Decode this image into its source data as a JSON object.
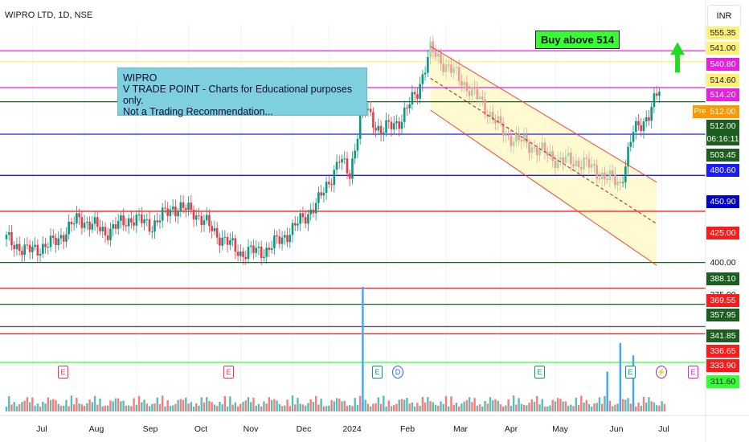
{
  "header": {
    "symbol": "WIPRO LTD, 1D, NSE",
    "currency": "INR"
  },
  "annotations": {
    "note_lines": [
      "WIPRO",
      "V TRADE POINT - Charts for Educational purposes only.",
      "Not a Trading Recommendation..."
    ],
    "buy_label": "Buy above 514"
  },
  "price_labels": [
    {
      "text": "555.35",
      "bg": "#fff176",
      "fg": "#131722"
    },
    {
      "text": "541.00",
      "bg": "#fff176",
      "fg": "#131722"
    },
    {
      "text": "540.80",
      "bg": "#e91ee3",
      "fg": "#ffffff"
    },
    {
      "text": "514.60",
      "bg": "#fff176",
      "fg": "#131722"
    },
    {
      "text": "514.20",
      "bg": "#e91ee3",
      "fg": "#ffffff"
    },
    {
      "text": "512.00",
      "bg": "#ff9800",
      "fg": "#ffffff"
    },
    {
      "text": "512.00",
      "bg": "#1b5e20",
      "fg": "#ffffff"
    },
    {
      "text": "06:16:11",
      "bg": "#1b5e20",
      "fg": "#ffffff"
    },
    {
      "text": "503.45",
      "bg": "#1b5e20",
      "fg": "#ffffff"
    },
    {
      "text": "480.60",
      "bg": "#1a1aff",
      "fg": "#ffffff"
    },
    {
      "text": "450.90",
      "bg": "#0000cc",
      "fg": "#ffffff"
    },
    {
      "text": "425.00",
      "bg": "#ff1a1a",
      "fg": "#ffffff"
    },
    {
      "text": "400.00",
      "bg": "#ffffff",
      "fg": "#131722"
    },
    {
      "text": "388.10",
      "bg": "#1b5e20",
      "fg": "#ffffff"
    },
    {
      "text": "375.00",
      "bg": "#ffffff",
      "fg": "#131722"
    },
    {
      "text": "369.55",
      "bg": "#ff1a1a",
      "fg": "#ffffff"
    },
    {
      "text": "357.95",
      "bg": "#1b5e20",
      "fg": "#ffffff"
    },
    {
      "text": "341.85",
      "bg": "#1b5e20",
      "fg": "#ffffff"
    },
    {
      "text": "336.65",
      "bg": "#ff1a1a",
      "fg": "#ffffff"
    },
    {
      "text": "333.90",
      "bg": "#ff1a1a",
      "fg": "#ffffff"
    },
    {
      "text": "311.60",
      "bg": "#33ff33",
      "fg": "#131722"
    }
  ],
  "pre_label": "Pre",
  "events": [
    {
      "label": "E",
      "color": "#f23645"
    },
    {
      "label": "E",
      "color": "#f23645"
    },
    {
      "label": "E",
      "color": "#089981"
    },
    {
      "label": "D",
      "color": "#2962ff"
    },
    {
      "label": "E",
      "color": "#089981"
    },
    {
      "label": "E",
      "color": "#089981"
    },
    {
      "label": "⚡",
      "color": "#9c27b0"
    },
    {
      "label": "E",
      "color": "#e91ee3"
    }
  ],
  "chart_data": {
    "type": "candlestick",
    "symbol": "WIPRO LTD",
    "interval": "1D",
    "exchange": "NSE",
    "x_ticks": [
      "Jul",
      "Aug",
      "Sep",
      "Oct",
      "Nov",
      "Dec",
      "2024",
      "Feb",
      "Mar",
      "Apr",
      "May",
      "Jun",
      "Jul"
    ],
    "y_range": [
      305,
      560
    ],
    "horizontal_levels": [
      {
        "price": 540.8,
        "color": "#e91ee3"
      },
      {
        "price": 533.0,
        "color": "#fff176"
      },
      {
        "price": 514.2,
        "color": "#e91ee3"
      },
      {
        "price": 504.0,
        "color": "#1b5e20"
      },
      {
        "price": 480.6,
        "color": "#1a1aff"
      },
      {
        "price": 450.9,
        "color": "#0000cc"
      },
      {
        "price": 425.0,
        "color": "#ff1a1a"
      },
      {
        "price": 388.1,
        "color": "#1b5e20"
      },
      {
        "price": 369.55,
        "color": "#ff1a1a"
      },
      {
        "price": 357.95,
        "color": "#1b5e20"
      },
      {
        "price": 341.85,
        "color": "#555555"
      },
      {
        "price": 336.65,
        "color": "#ff1a1a"
      },
      {
        "price": 316.0,
        "color": "#33ff33"
      }
    ],
    "price_path": [
      {
        "t": 0,
        "p": 405
      },
      {
        "t": 8,
        "p": 396
      },
      {
        "t": 18,
        "p": 402
      },
      {
        "t": 28,
        "p": 420
      },
      {
        "t": 38,
        "p": 410
      },
      {
        "t": 48,
        "p": 420
      },
      {
        "t": 56,
        "p": 415
      },
      {
        "t": 64,
        "p": 428
      },
      {
        "t": 72,
        "p": 425
      },
      {
        "t": 80,
        "p": 410
      },
      {
        "t": 90,
        "p": 395
      },
      {
        "t": 100,
        "p": 397
      },
      {
        "t": 110,
        "p": 412
      },
      {
        "t": 120,
        "p": 432
      },
      {
        "t": 128,
        "p": 462
      },
      {
        "t": 132,
        "p": 452
      },
      {
        "t": 137,
        "p": 502
      },
      {
        "t": 144,
        "p": 482
      },
      {
        "t": 152,
        "p": 492
      },
      {
        "t": 158,
        "p": 512
      },
      {
        "t": 163,
        "p": 541
      },
      {
        "t": 172,
        "p": 525
      },
      {
        "t": 182,
        "p": 505
      },
      {
        "t": 192,
        "p": 480
      },
      {
        "t": 202,
        "p": 472
      },
      {
        "t": 212,
        "p": 462
      },
      {
        "t": 222,
        "p": 460
      },
      {
        "t": 230,
        "p": 450
      },
      {
        "t": 236,
        "p": 445
      },
      {
        "t": 241,
        "p": 482
      },
      {
        "t": 247,
        "p": 495
      },
      {
        "t": 251,
        "p": 512
      }
    ],
    "channel": {
      "upper": [
        {
          "t": 163,
          "p": 544
        },
        {
          "t": 250,
          "p": 446
        }
      ],
      "lower": [
        {
          "t": 163,
          "p": 498
        },
        {
          "t": 250,
          "p": 386
        }
      ],
      "middle": [
        {
          "t": 163,
          "p": 521
        },
        {
          "t": 250,
          "p": 416
        }
      ]
    },
    "volume_spikes": [
      {
        "t": 137,
        "v": 1.0
      },
      {
        "t": 236,
        "v": 0.55
      },
      {
        "t": 241,
        "v": 0.45
      },
      {
        "t": 231,
        "v": 0.32
      }
    ]
  }
}
